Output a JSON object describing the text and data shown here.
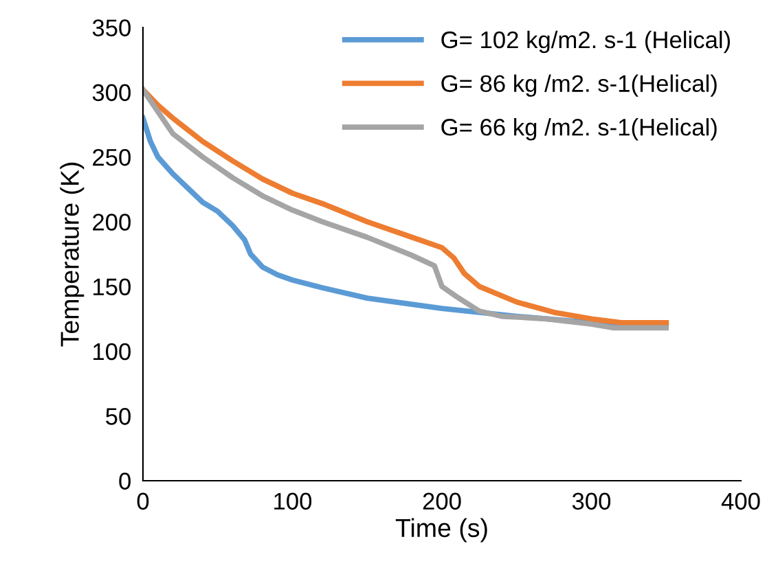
{
  "chart_data": {
    "type": "line",
    "xlabel": "Time (s)",
    "ylabel": "Temperature (K)",
    "xlim": [
      0,
      400
    ],
    "xticks": [
      0,
      100,
      200,
      300,
      400
    ],
    "ylim": [
      0,
      350
    ],
    "yticks": [
      0,
      50,
      100,
      150,
      200,
      250,
      300,
      350
    ],
    "grid": false,
    "legend": "top right",
    "marker": "none",
    "line_style": "solid",
    "series": [
      {
        "name": "G= 102 kg/m2. s-1 (Helical)",
        "color": "#5b9bd5",
        "x": [
          0,
          5,
          10,
          20,
          30,
          40,
          50,
          60,
          68,
          72,
          80,
          90,
          100,
          120,
          150,
          200,
          250,
          300,
          350
        ],
        "values": [
          280,
          262,
          250,
          237,
          226,
          215,
          208,
          197,
          186,
          175,
          165,
          159,
          155,
          149,
          141,
          133,
          127,
          122,
          121
        ]
      },
      {
        "name": "G= 86 kg /m2. s-1(Helical)",
        "color": "#ed7d31",
        "x": [
          0,
          10,
          20,
          40,
          60,
          80,
          100,
          120,
          150,
          180,
          200,
          208,
          215,
          225,
          250,
          275,
          300,
          320,
          350
        ],
        "values": [
          302,
          290,
          280,
          262,
          247,
          233,
          222,
          214,
          200,
          188,
          180,
          172,
          160,
          150,
          138,
          130,
          125,
          122,
          122
        ]
      },
      {
        "name": "G= 66 kg /m2. s-1(Helical)",
        "color": "#a5a5a5",
        "x": [
          0,
          10,
          20,
          40,
          60,
          80,
          100,
          120,
          150,
          180,
          195,
          200,
          210,
          225,
          240,
          270,
          300,
          315,
          350
        ],
        "values": [
          302,
          285,
          268,
          250,
          234,
          220,
          209,
          200,
          188,
          174,
          166,
          150,
          142,
          131,
          127,
          125,
          121,
          118,
          118
        ]
      }
    ]
  }
}
